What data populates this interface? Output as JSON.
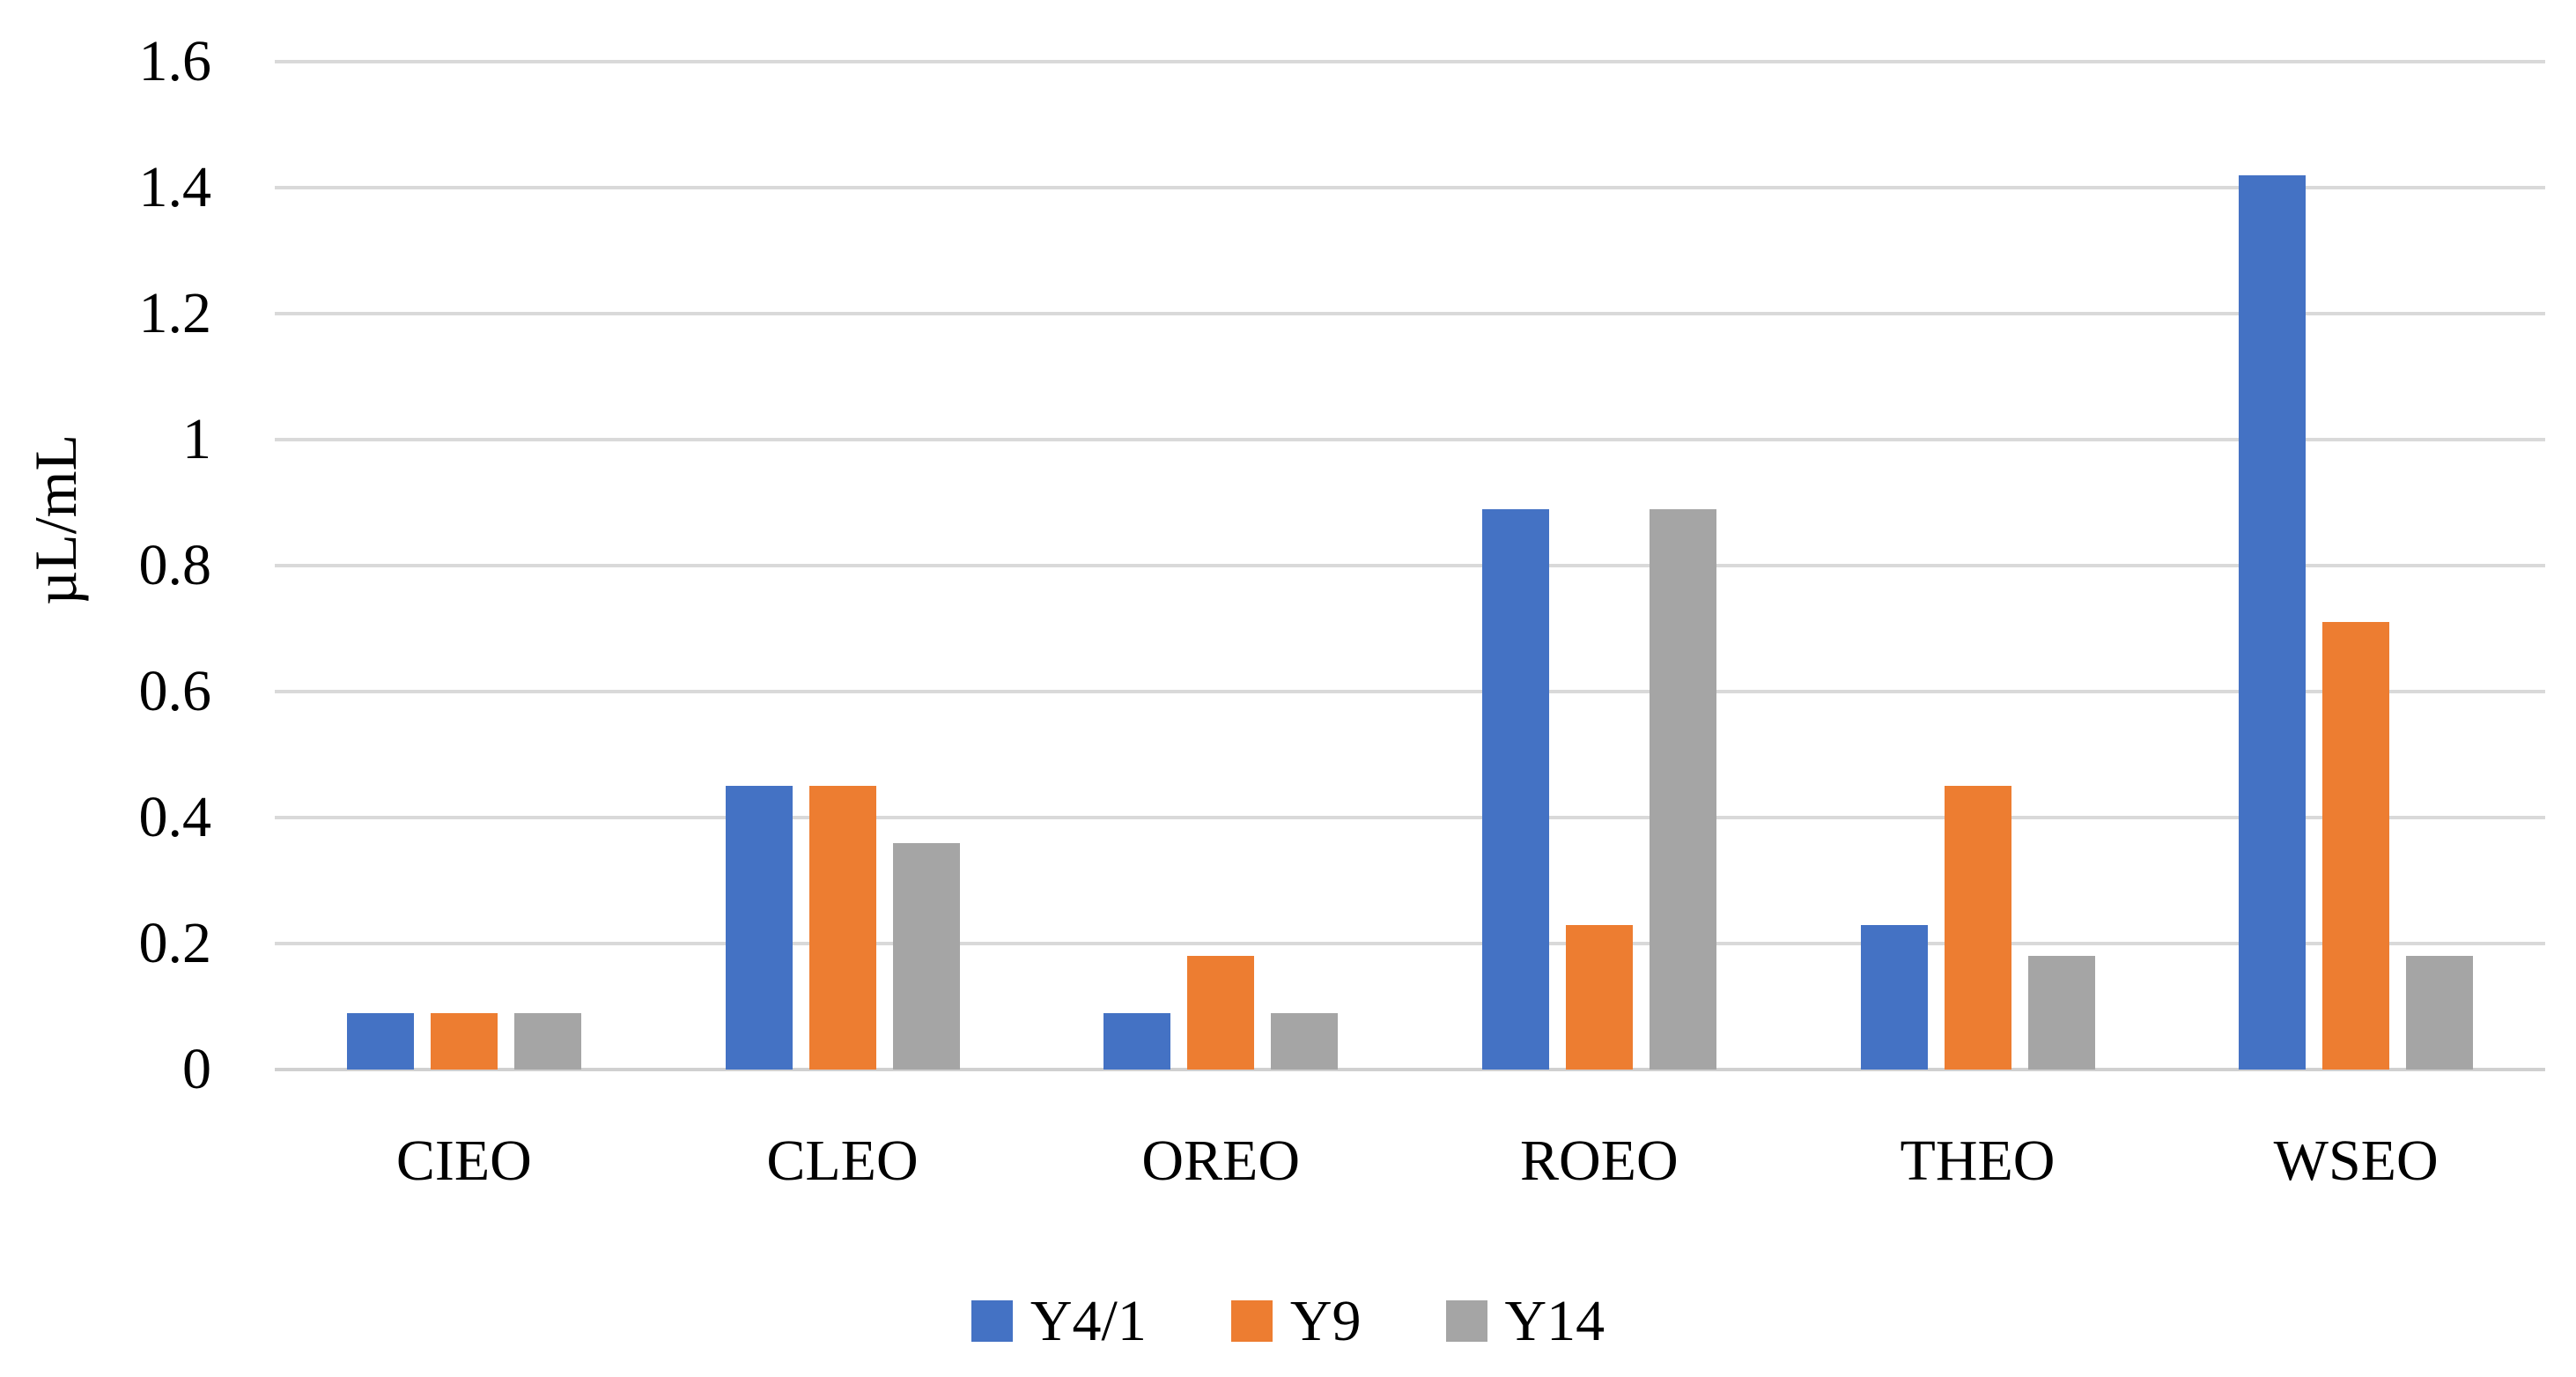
{
  "chart_data": {
    "type": "bar",
    "title": "",
    "ylabel": "µL/mL",
    "categories": [
      "CIEO",
      "CLEO",
      "OREO",
      "ROEO",
      "THEO",
      "WSEO"
    ],
    "series": [
      {
        "name": "Y4/1",
        "color": "#4472C4",
        "values": [
          0.09,
          0.45,
          0.09,
          0.89,
          0.23,
          1.42
        ]
      },
      {
        "name": "Y9",
        "color": "#ED7D31",
        "values": [
          0.09,
          0.45,
          0.18,
          0.23,
          0.45,
          0.71
        ]
      },
      {
        "name": "Y14",
        "color": "#A5A5A5",
        "values": [
          0.09,
          0.36,
          0.09,
          0.89,
          0.18,
          0.18
        ]
      }
    ],
    "ylim": [
      0,
      1.6
    ],
    "ytick_step": 0.2,
    "yticks": [
      "0",
      "0.2",
      "0.4",
      "0.6",
      "0.8",
      "1",
      "1.2",
      "1.4",
      "1.6"
    ],
    "grid": true,
    "legend_position": "bottom"
  },
  "colors": {
    "gridline": "#D9D9D9",
    "axis_line": "#D0D0D0",
    "text": "#000000",
    "background": "#FFFFFF"
  }
}
